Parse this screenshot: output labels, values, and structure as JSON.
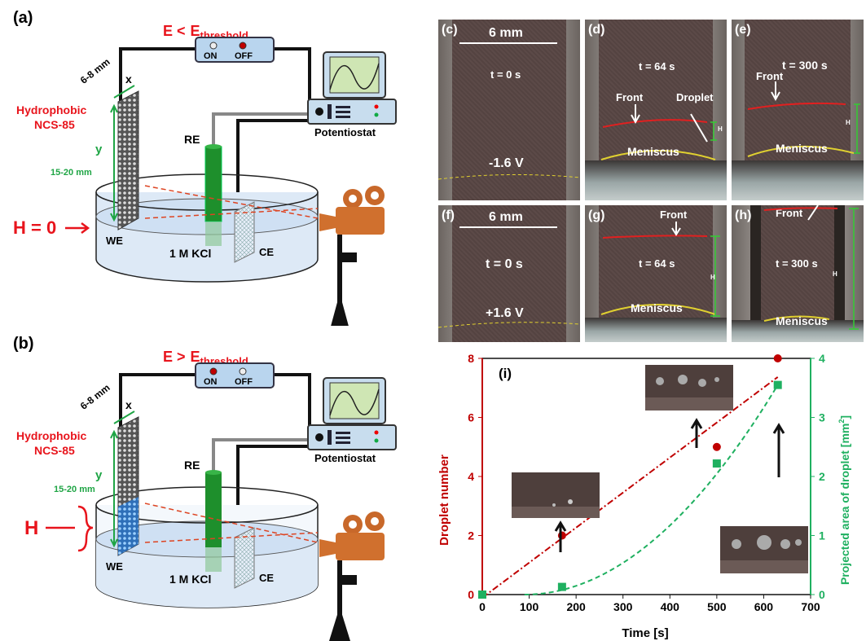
{
  "panel_a": {
    "label": "(a)",
    "condition_lhs": "E <",
    "condition_sub": "threshold",
    "condition_e": "E",
    "switch_on": "ON",
    "switch_off": "OFF",
    "potentiostat": "Potentiostat",
    "dim_x_label": "6-8 mm",
    "x": "x",
    "y": "y",
    "dim_y_label": "15-20 mm",
    "hydrophobic": "Hydrophobic",
    "material": "NCS-85",
    "re": "RE",
    "we": "WE",
    "ce": "CE",
    "electrolyte": "1 M KCl",
    "h_label": "H = 0"
  },
  "panel_b": {
    "label": "(b)",
    "condition_lhs": "E >",
    "condition_sub": "threshold",
    "condition_e": "E",
    "switch_on": "ON",
    "switch_off": "OFF",
    "potentiostat": "Potentiostat",
    "dim_x_label": "6-8 mm",
    "x": "x",
    "y": "y",
    "dim_y_label": "15-20 mm",
    "hydrophobic": "Hydrophobic",
    "material": "NCS-85",
    "re": "RE",
    "we": "WE",
    "ce": "CE",
    "electrolyte": "1 M KCl",
    "h_label": "H"
  },
  "photos": {
    "c": {
      "label": "(c)",
      "scale": "6 mm",
      "time": "t = 0 s",
      "potential": "-1.6 V"
    },
    "d": {
      "label": "(d)",
      "time": "t = 64 s",
      "front": "Front",
      "droplet": "Droplet",
      "meniscus": "Meniscus",
      "h": "H"
    },
    "e": {
      "label": "(e)",
      "time": "t = 300 s",
      "front": "Front",
      "meniscus": "Meniscus",
      "h": "H"
    },
    "f": {
      "label": "(f)",
      "scale": "6 mm",
      "time": "t = 0 s",
      "potential": "+1.6 V"
    },
    "g": {
      "label": "(g)",
      "time": "t = 64 s",
      "front": "Front",
      "meniscus": "Meniscus",
      "h": "H"
    },
    "h": {
      "label": "(h)",
      "time": "t = 300 s",
      "front": "Front",
      "meniscus": "Meniscus",
      "h": "H"
    }
  },
  "chart_data": {
    "type": "scatter",
    "panel_label": "(i)",
    "xlabel": "Time [s]",
    "ylabel_left": "Droplet number",
    "ylabel_right": "Projected area of droplet [mm",
    "ylabel_right_sup": "2",
    "ylabel_right_tail": "]",
    "xlim": [
      0,
      700
    ],
    "ylim_left": [
      0,
      8
    ],
    "ylim_right": [
      0,
      4
    ],
    "x_ticks": [
      0,
      100,
      200,
      300,
      400,
      500,
      600,
      700
    ],
    "y_left_ticks": [
      0,
      2,
      4,
      6,
      8
    ],
    "y_right_ticks": [
      0,
      1,
      2,
      3,
      4
    ],
    "series": [
      {
        "axis": "left",
        "color": "#c00000",
        "marker": "circle",
        "x": [
          0,
          170,
          500,
          630
        ],
        "y": [
          0,
          2,
          5,
          8
        ],
        "fit": "linear"
      },
      {
        "axis": "right",
        "color": "#1fb060",
        "marker": "square",
        "x": [
          0,
          170,
          500,
          630
        ],
        "y": [
          0,
          0.13,
          2.22,
          3.55
        ],
        "fit": "quadratic"
      }
    ],
    "colors": {
      "left_axis": "#c00000",
      "right_axis": "#1fb060"
    }
  }
}
